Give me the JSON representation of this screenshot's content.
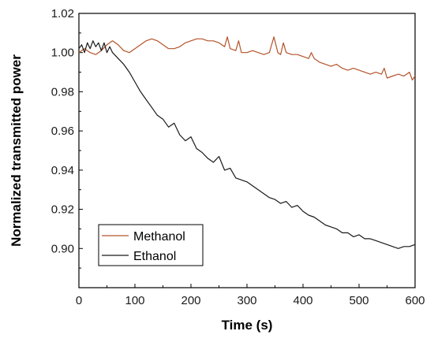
{
  "chart_data": {
    "type": "line",
    "xlabel": "Time (s)",
    "ylabel": "Normalized transmitted power",
    "xlim": [
      0,
      600
    ],
    "ylim": [
      0.88,
      1.02
    ],
    "xticks": [
      0,
      100,
      200,
      300,
      400,
      500,
      600
    ],
    "yticks": [
      0.9,
      0.92,
      0.94,
      0.96,
      0.98,
      1.0,
      1.02
    ],
    "ytick_labels": [
      "0.90",
      "0.92",
      "0.94",
      "0.96",
      "0.98",
      "1.00",
      "1.02"
    ],
    "grid": false,
    "legend_position": "bottom-left",
    "series": [
      {
        "name": "Methanol",
        "color": "#b5532a",
        "x": [
          0,
          10,
          20,
          30,
          40,
          50,
          60,
          70,
          80,
          90,
          100,
          110,
          120,
          130,
          140,
          150,
          160,
          170,
          180,
          190,
          200,
          210,
          220,
          230,
          240,
          250,
          260,
          265,
          270,
          280,
          285,
          290,
          300,
          310,
          320,
          330,
          340,
          348,
          355,
          360,
          365,
          370,
          380,
          390,
          400,
          410,
          415,
          420,
          430,
          440,
          450,
          460,
          470,
          480,
          490,
          500,
          510,
          520,
          530,
          540,
          545,
          550,
          560,
          570,
          580,
          590,
          595,
          600
        ],
        "y": [
          1.0,
          1.002,
          1.0,
          0.999,
          1.001,
          1.004,
          1.006,
          1.004,
          1.001,
          1.0,
          1.002,
          1.004,
          1.006,
          1.007,
          1.006,
          1.004,
          1.002,
          1.002,
          1.003,
          1.005,
          1.006,
          1.007,
          1.007,
          1.006,
          1.006,
          1.005,
          1.003,
          1.008,
          1.002,
          1.001,
          1.006,
          1.0,
          1.0,
          1.001,
          1.0,
          0.999,
          1.0,
          1.008,
          1.0,
          0.999,
          1.005,
          1.0,
          0.999,
          0.999,
          0.998,
          0.997,
          1.0,
          0.997,
          0.995,
          0.994,
          0.993,
          0.994,
          0.992,
          0.991,
          0.992,
          0.991,
          0.99,
          0.989,
          0.99,
          0.989,
          0.992,
          0.987,
          0.988,
          0.989,
          0.988,
          0.99,
          0.986,
          0.988
        ]
      },
      {
        "name": "Ethanol",
        "color": "#1a1a1a",
        "x": [
          0,
          5,
          10,
          15,
          20,
          25,
          30,
          35,
          40,
          45,
          50,
          55,
          60,
          70,
          80,
          90,
          100,
          110,
          120,
          130,
          140,
          150,
          160,
          170,
          180,
          190,
          200,
          210,
          220,
          230,
          240,
          250,
          260,
          270,
          280,
          290,
          300,
          310,
          320,
          330,
          340,
          350,
          360,
          370,
          380,
          390,
          400,
          410,
          420,
          430,
          440,
          450,
          460,
          470,
          480,
          490,
          500,
          510,
          520,
          530,
          540,
          550,
          560,
          570,
          580,
          590,
          600
        ],
        "y": [
          1.002,
          1.004,
          1.0,
          1.005,
          1.002,
          1.006,
          1.003,
          1.005,
          1.001,
          1.005,
          1.0,
          1.003,
          1.0,
          0.997,
          0.994,
          0.99,
          0.985,
          0.98,
          0.976,
          0.972,
          0.968,
          0.966,
          0.962,
          0.964,
          0.958,
          0.955,
          0.957,
          0.951,
          0.949,
          0.946,
          0.944,
          0.947,
          0.94,
          0.941,
          0.936,
          0.935,
          0.934,
          0.932,
          0.93,
          0.928,
          0.926,
          0.925,
          0.923,
          0.924,
          0.921,
          0.922,
          0.919,
          0.917,
          0.916,
          0.914,
          0.912,
          0.911,
          0.91,
          0.908,
          0.908,
          0.906,
          0.907,
          0.905,
          0.905,
          0.904,
          0.903,
          0.902,
          0.901,
          0.9,
          0.901,
          0.901,
          0.902
        ]
      }
    ]
  }
}
